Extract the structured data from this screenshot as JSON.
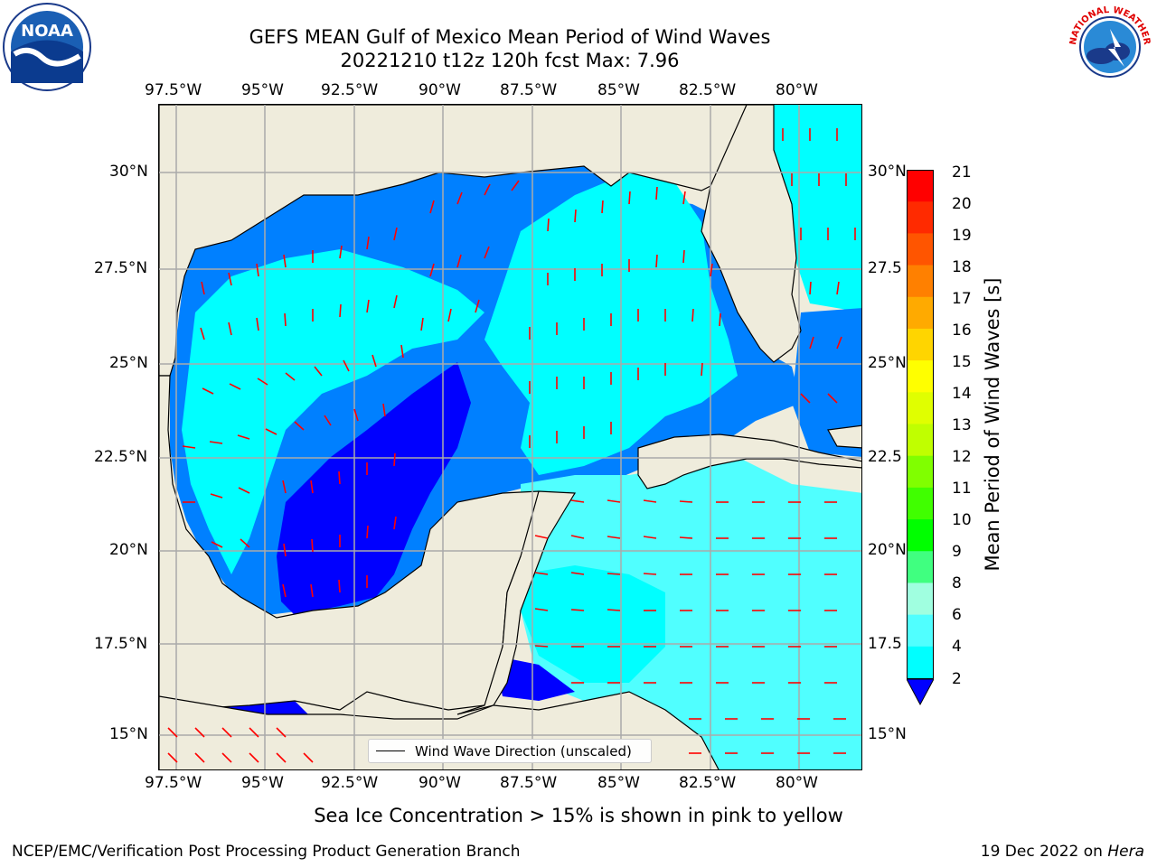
{
  "title": {
    "line1": "GEFS MEAN Gulf of Mexico Mean Period of Wind Waves",
    "line2": "20221210 t12z 120h fcst   Max: 7.96"
  },
  "axes": {
    "lon_ticks": [
      "97.5°W",
      "95°W",
      "92.5°W",
      "90°W",
      "87.5°W",
      "85°W",
      "82.5°W",
      "80°W"
    ],
    "lat_ticks_left": [
      "30°N",
      "27.5°N",
      "25°N",
      "22.5°N",
      "20°N",
      "17.5°N",
      "15°N"
    ],
    "lat_ticks_right": [
      "30°N",
      "27.5",
      "25°N",
      "22.5",
      "20°N",
      "17.5",
      "15°N"
    ]
  },
  "colorbar": {
    "title": "Mean Period of Wind Waves [s]",
    "ticks": [
      "21",
      "20",
      "19",
      "18",
      "17",
      "16",
      "15",
      "14",
      "13",
      "12",
      "11",
      "10",
      "9",
      "8",
      "6",
      "4",
      "2"
    ],
    "colors": [
      "#ff0000",
      "#ff2a00",
      "#ff5500",
      "#ff8000",
      "#ffaa00",
      "#ffd500",
      "#ffff00",
      "#e0ff00",
      "#c0ff00",
      "#80ff00",
      "#40ff00",
      "#00ff00",
      "#40ff80",
      "#a0ffe0",
      "#50ffff",
      "#00ffff",
      "#0080ff",
      "#0000ff"
    ]
  },
  "colors": {
    "land": "#efecdc",
    "arrow": "#ff0000",
    "band_2_4": "#0080ff",
    "band_under_2": "#0000ff",
    "band_4_6": "#00ffff",
    "band_6_8": "#50ffff"
  },
  "legend": {
    "label": "Wind Wave Direction (unscaled)"
  },
  "note": "Sea Ice Concentration > 15% is shown in pink to yellow",
  "footer": {
    "left": "NCEP/EMC/Verification Post Processing Product Generation Branch",
    "right_prefix": "19 Dec 2022 on ",
    "right_host": "Hera"
  },
  "logos": {
    "noaa_text": "NOAA",
    "nws_text": "NATIONAL WEATHER SERVICE"
  }
}
